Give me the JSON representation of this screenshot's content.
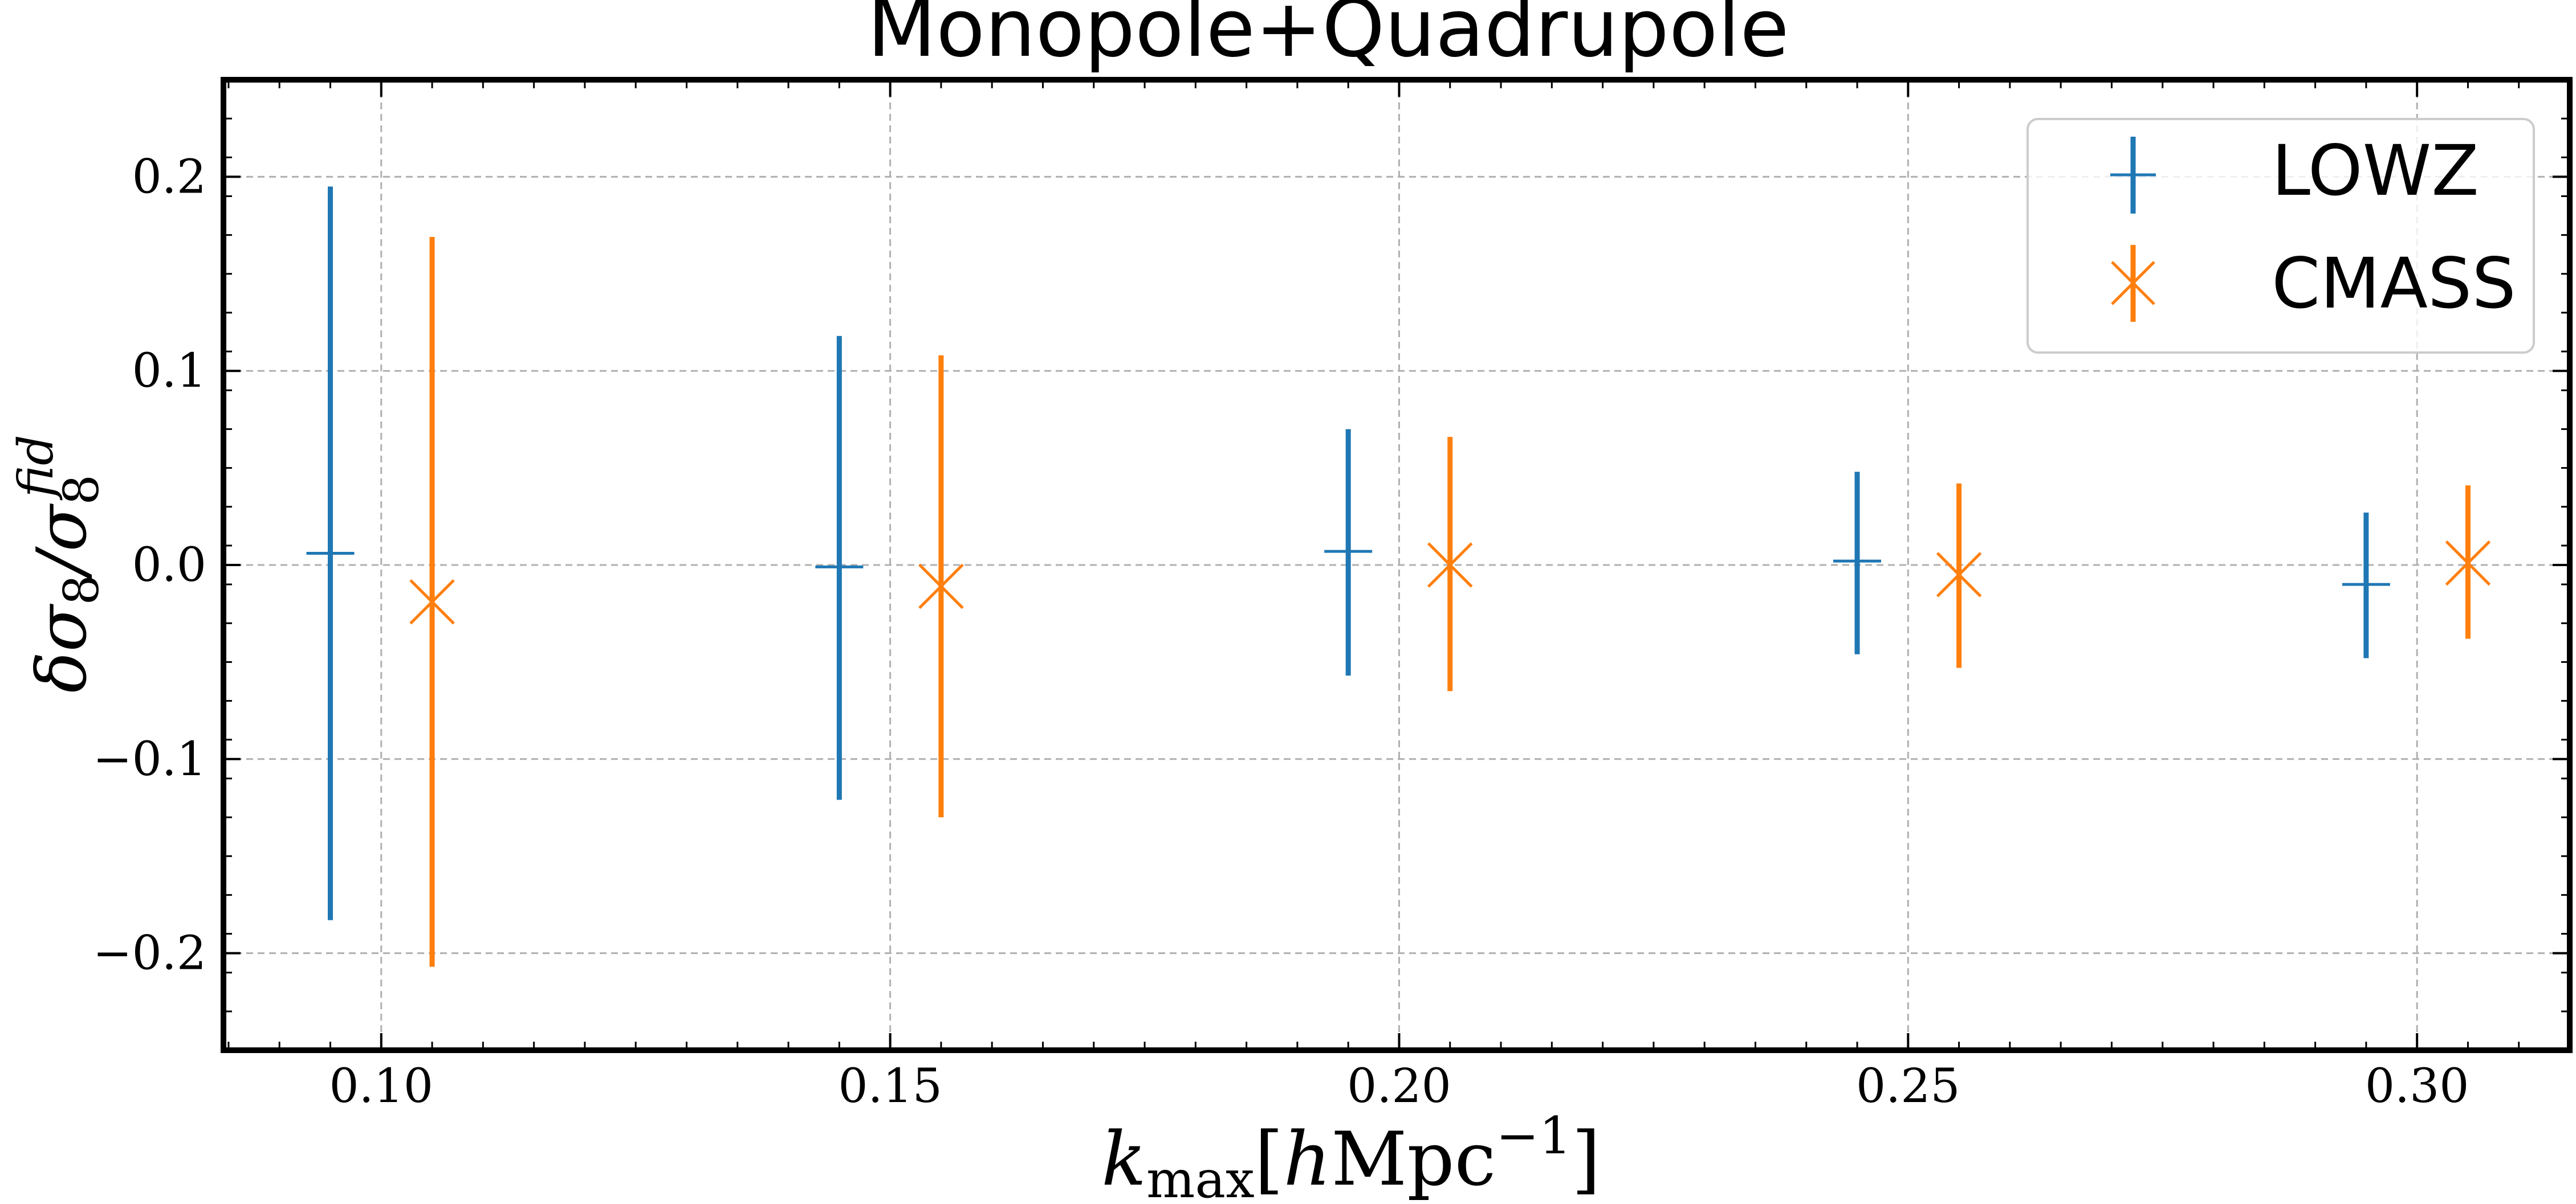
{
  "chart_data": {
    "type": "scatter",
    "title": "Monopole+Quadrupole",
    "xlabel": {
      "main": "k",
      "sub": "max",
      "bracket_open": "[",
      "h": "h",
      "unit": "Mpc",
      "exp": "−1",
      "bracket_close": "]"
    },
    "ylabel": {
      "delta": "δσ",
      "sub1": "8",
      "slash": "/σ",
      "sub2": "8",
      "sup": "fid"
    },
    "xlim": [
      0.0845,
      0.315
    ],
    "ylim": [
      -0.25,
      0.25
    ],
    "xticks": [
      0.1,
      0.15,
      0.2,
      0.25,
      0.3
    ],
    "xtick_labels": [
      "0.10",
      "0.15",
      "0.20",
      "0.25",
      "0.30"
    ],
    "yticks": [
      -0.2,
      -0.1,
      0.0,
      0.1,
      0.2
    ],
    "ytick_labels": [
      "−0.2",
      "−0.1",
      "0.0",
      "0.1",
      "0.2"
    ],
    "grid": true,
    "legend_position": "top-right",
    "series": [
      {
        "name": "LOWZ",
        "color": "#1f77b4",
        "marker": "plus",
        "points": [
          {
            "x": 0.095,
            "y": 0.006,
            "ylo": -0.183,
            "yhi": 0.195
          },
          {
            "x": 0.145,
            "y": -0.001,
            "ylo": -0.121,
            "yhi": 0.118
          },
          {
            "x": 0.195,
            "y": 0.007,
            "ylo": -0.057,
            "yhi": 0.07
          },
          {
            "x": 0.245,
            "y": 0.002,
            "ylo": -0.046,
            "yhi": 0.048
          },
          {
            "x": 0.295,
            "y": -0.01,
            "ylo": -0.048,
            "yhi": 0.027
          }
        ]
      },
      {
        "name": "CMASS",
        "color": "#ff7f0e",
        "marker": "x",
        "points": [
          {
            "x": 0.105,
            "y": -0.019,
            "ylo": -0.207,
            "yhi": 0.169
          },
          {
            "x": 0.155,
            "y": -0.011,
            "ylo": -0.13,
            "yhi": 0.108
          },
          {
            "x": 0.205,
            "y": 0.0,
            "ylo": -0.065,
            "yhi": 0.066
          },
          {
            "x": 0.255,
            "y": -0.005,
            "ylo": -0.053,
            "yhi": 0.042
          },
          {
            "x": 0.305,
            "y": 0.001,
            "ylo": -0.038,
            "yhi": 0.041
          }
        ]
      }
    ]
  }
}
